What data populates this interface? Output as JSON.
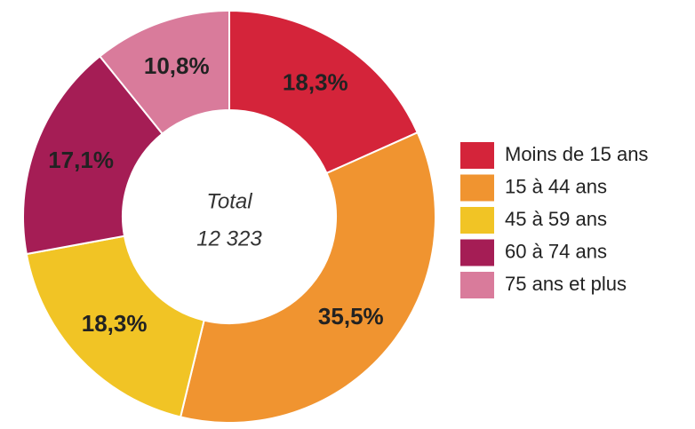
{
  "chart_data": {
    "type": "donut",
    "categories": [
      "Moins de 15 ans",
      "15 à 44 ans",
      "45 à 59 ans",
      "60 à 74 ans",
      "75 ans et plus"
    ],
    "values": [
      18.3,
      35.5,
      18.3,
      17.1,
      10.8
    ],
    "value_labels": [
      "18,3%",
      "35,5%",
      "18,3%",
      "17,1%",
      "10,8%"
    ],
    "colors": [
      "#d4243a",
      "#f09430",
      "#f1c425",
      "#a51d55",
      "#d97b9b"
    ],
    "center_label": "Total",
    "center_value": "12 323"
  }
}
